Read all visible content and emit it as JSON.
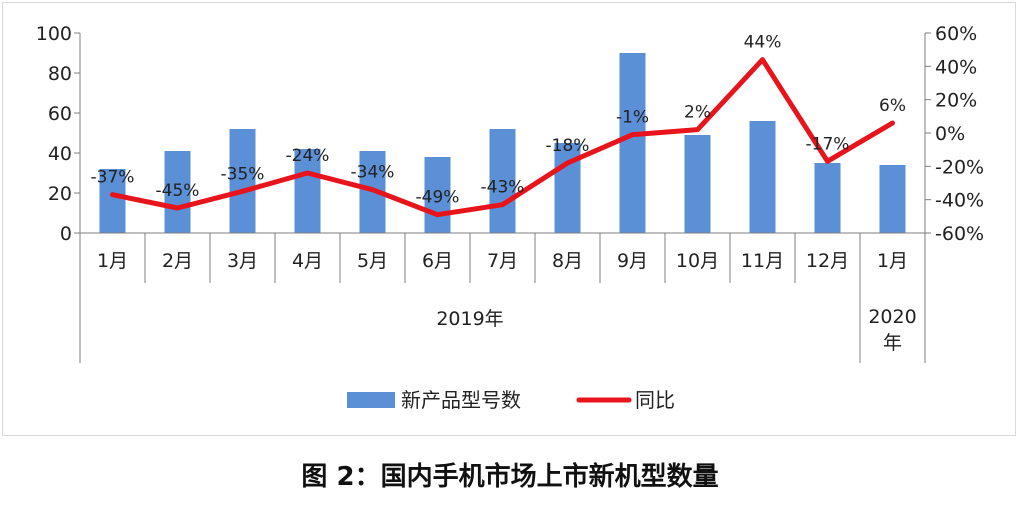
{
  "caption": "图 2：国内手机市场上市新机型数量",
  "colors": {
    "bar": "#5b8fd6",
    "line": "#e8141b",
    "axis": "#7f7f7f"
  },
  "chart_data": {
    "type": "bar",
    "categories": [
      "1月",
      "2月",
      "3月",
      "4月",
      "5月",
      "6月",
      "7月",
      "8月",
      "9月",
      "10月",
      "11月",
      "12月",
      "1月"
    ],
    "groups": [
      {
        "label": "2019年",
        "span": 12
      },
      {
        "label_lines": [
          "2020",
          "年"
        ],
        "span": 1
      }
    ],
    "series": [
      {
        "name": "新产品型号数",
        "type": "bar",
        "axis": "left",
        "values": [
          32,
          41,
          52,
          42,
          41,
          38,
          52,
          45,
          90,
          49,
          56,
          35,
          34
        ]
      },
      {
        "name": "同比",
        "type": "line",
        "axis": "right",
        "values": [
          -37,
          -45,
          -35,
          -24,
          -34,
          -49,
          -43,
          -18,
          -1,
          2,
          44,
          -17,
          6
        ],
        "labels": [
          "-37%",
          "-45%",
          "-35%",
          "-24%",
          "-34%",
          "-49%",
          "-43%",
          "-18%",
          "-1%",
          "2%",
          "44%",
          "-17%",
          "6%"
        ]
      }
    ],
    "y_left": {
      "ylim": [
        0,
        100
      ],
      "ticks": [
        "0",
        "20",
        "40",
        "60",
        "80",
        "100"
      ]
    },
    "y_right": {
      "ylim": [
        -60,
        60
      ],
      "ticks": [
        "-60%",
        "-40%",
        "-20%",
        "0%",
        "20%",
        "40%",
        "60%"
      ]
    },
    "legend": {
      "placement": "bottom"
    },
    "grid": false
  }
}
